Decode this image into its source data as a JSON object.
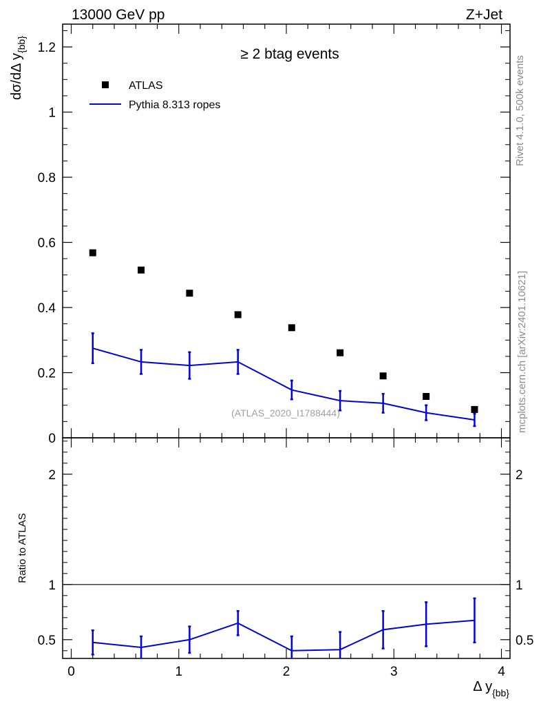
{
  "header": {
    "left": "13000 GeV pp",
    "right": "Z+Jet"
  },
  "side_labels": {
    "rivet": "Rivet 4.1.0,  500k events",
    "mcplots": "mcplots.cern.ch [arXiv:2401.10621]"
  },
  "chart_data": [
    {
      "type": "scatter",
      "panel": "main",
      "title": "≥ 2 btag events",
      "watermark": "(ATLAS_2020_I1788444)",
      "ylabel_main": "dσ/dΔ y",
      "ylabel_sub": "{bb}",
      "xlabel_main": "Δ y",
      "xlabel_sub": "{bb}",
      "xlim": [
        -0.08,
        4.08
      ],
      "ylim": [
        0,
        1.27
      ],
      "yticks": [
        0,
        0.2,
        0.4,
        0.6,
        0.8,
        1,
        1.2
      ],
      "ytick_labels": [
        "0",
        "0.2",
        "0.4",
        "0.6",
        "0.8",
        "1",
        "1.2"
      ],
      "legend": [
        {
          "label": "ATLAS",
          "style": "marker",
          "color": "#000000"
        },
        {
          "label": "Pythia 8.313 ropes",
          "style": "line",
          "color": "#0000e0"
        }
      ],
      "series": [
        {
          "name": "ATLAS",
          "color": "#000000",
          "x": [
            0.2,
            0.65,
            1.1,
            1.55,
            2.05,
            2.5,
            2.9,
            3.3,
            3.75
          ],
          "y": [
            0.568,
            0.515,
            0.444,
            0.378,
            0.338,
            0.261,
            0.19,
            0.127,
            0.087
          ]
        },
        {
          "name": "Pythia 8.313 ropes",
          "color": "#0000e0",
          "x": [
            0.2,
            0.65,
            1.1,
            1.55,
            2.05,
            2.5,
            2.9,
            3.3,
            3.75
          ],
          "y": [
            0.275,
            0.233,
            0.222,
            0.233,
            0.147,
            0.114,
            0.106,
            0.077,
            0.055
          ],
          "err": [
            0.046,
            0.037,
            0.041,
            0.037,
            0.029,
            0.03,
            0.029,
            0.023,
            0.019
          ]
        }
      ]
    },
    {
      "type": "line",
      "panel": "ratio",
      "ylabel": "Ratio to ATLAS",
      "xlim": [
        -0.08,
        4.08
      ],
      "ylim": [
        0.33,
        2.33
      ],
      "yticks": [
        0.5,
        1,
        2
      ],
      "ytick_labels": [
        "0.5",
        "1",
        "2"
      ],
      "xticks": [
        0,
        1,
        2,
        3,
        4
      ],
      "xtick_labels": [
        "0",
        "1",
        "2",
        "3",
        "4"
      ],
      "reference": 1,
      "series": [
        {
          "name": "Pythia 8.313 ropes / ATLAS",
          "color": "#0000e0",
          "x": [
            0.2,
            0.65,
            1.1,
            1.55,
            2.05,
            2.5,
            2.9,
            3.3,
            3.75
          ],
          "y": [
            0.475,
            0.43,
            0.5,
            0.65,
            0.4,
            0.41,
            0.59,
            0.64,
            0.675
          ],
          "err": [
            0.11,
            0.1,
            0.12,
            0.11,
            0.13,
            0.16,
            0.17,
            0.2,
            0.2
          ]
        }
      ]
    }
  ]
}
